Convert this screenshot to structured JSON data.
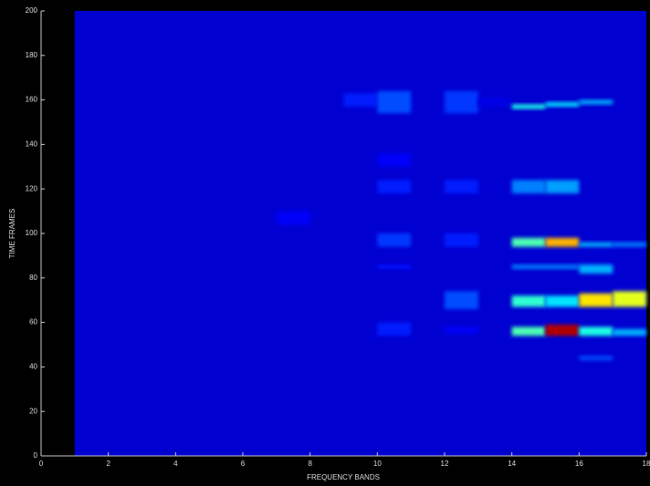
{
  "chart_data": {
    "type": "heatmap",
    "xlabel": "FREQUENCY BANDS",
    "ylabel": "TIME FRAMES",
    "xlim": [
      0,
      18
    ],
    "ylim": [
      0,
      200
    ],
    "xticks": [
      0,
      2,
      4,
      6,
      8,
      10,
      12,
      14,
      16,
      18
    ],
    "yticks": [
      0,
      20,
      40,
      60,
      80,
      100,
      120,
      140,
      160,
      180,
      200
    ],
    "colormap": "jet",
    "clim": [
      0,
      1
    ],
    "cells": [
      {
        "x": [
          1,
          18
        ],
        "y": [
          0,
          200
        ],
        "value": 0.08
      },
      {
        "x": [
          9,
          10
        ],
        "y": [
          157,
          163
        ],
        "value": 0.15
      },
      {
        "x": [
          10,
          11
        ],
        "y": [
          154,
          164
        ],
        "value": 0.2
      },
      {
        "x": [
          12,
          13
        ],
        "y": [
          154,
          164
        ],
        "value": 0.18
      },
      {
        "x": [
          13,
          14
        ],
        "y": [
          157,
          161
        ],
        "value": 0.1
      },
      {
        "x": [
          14,
          15
        ],
        "y": [
          156,
          158
        ],
        "value": 0.4
      },
      {
        "x": [
          15,
          16
        ],
        "y": [
          157,
          159
        ],
        "value": 0.35
      },
      {
        "x": [
          16,
          17
        ],
        "y": [
          158,
          160
        ],
        "value": 0.3
      },
      {
        "x": [
          10,
          11
        ],
        "y": [
          130,
          136
        ],
        "value": 0.12
      },
      {
        "x": [
          10,
          11
        ],
        "y": [
          118,
          124
        ],
        "value": 0.15
      },
      {
        "x": [
          12,
          13
        ],
        "y": [
          118,
          124
        ],
        "value": 0.15
      },
      {
        "x": [
          14,
          15
        ],
        "y": [
          118,
          124
        ],
        "value": 0.25
      },
      {
        "x": [
          15,
          16
        ],
        "y": [
          118,
          124
        ],
        "value": 0.28
      },
      {
        "x": [
          7,
          8
        ],
        "y": [
          104,
          110
        ],
        "value": 0.12
      },
      {
        "x": [
          10,
          11
        ],
        "y": [
          94,
          100
        ],
        "value": 0.18
      },
      {
        "x": [
          12,
          13
        ],
        "y": [
          94,
          100
        ],
        "value": 0.15
      },
      {
        "x": [
          14,
          15
        ],
        "y": [
          94,
          98
        ],
        "value": 0.45
      },
      {
        "x": [
          15,
          16
        ],
        "y": [
          94,
          98
        ],
        "value": 0.7
      },
      {
        "x": [
          16,
          17
        ],
        "y": [
          94,
          96
        ],
        "value": 0.3
      },
      {
        "x": [
          17,
          18
        ],
        "y": [
          94,
          96
        ],
        "value": 0.25
      },
      {
        "x": [
          10,
          11
        ],
        "y": [
          84,
          86
        ],
        "value": 0.14
      },
      {
        "x": [
          14,
          16
        ],
        "y": [
          84,
          86
        ],
        "value": 0.25
      },
      {
        "x": [
          16,
          17
        ],
        "y": [
          82,
          86
        ],
        "value": 0.3
      },
      {
        "x": [
          12,
          13
        ],
        "y": [
          66,
          74
        ],
        "value": 0.2
      },
      {
        "x": [
          14,
          15
        ],
        "y": [
          67,
          72
        ],
        "value": 0.42
      },
      {
        "x": [
          15,
          16
        ],
        "y": [
          67,
          72
        ],
        "value": 0.35
      },
      {
        "x": [
          16,
          17
        ],
        "y": [
          67,
          73
        ],
        "value": 0.65
      },
      {
        "x": [
          17,
          18
        ],
        "y": [
          67,
          74
        ],
        "value": 0.6
      },
      {
        "x": [
          10,
          11
        ],
        "y": [
          54,
          60
        ],
        "value": 0.15
      },
      {
        "x": [
          12,
          13
        ],
        "y": [
          55,
          58
        ],
        "value": 0.12
      },
      {
        "x": [
          14,
          15
        ],
        "y": [
          54,
          58
        ],
        "value": 0.45
      },
      {
        "x": [
          15,
          16
        ],
        "y": [
          54,
          59
        ],
        "value": 0.95
      },
      {
        "x": [
          16,
          17
        ],
        "y": [
          54,
          58
        ],
        "value": 0.4
      },
      {
        "x": [
          17,
          18
        ],
        "y": [
          54,
          57
        ],
        "value": 0.3
      },
      {
        "x": [
          16,
          17
        ],
        "y": [
          43,
          45
        ],
        "value": 0.2
      }
    ]
  }
}
